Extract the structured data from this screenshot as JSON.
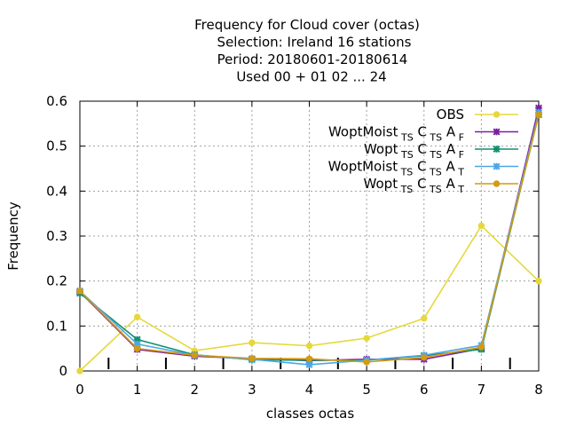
{
  "chart_data": {
    "type": "line",
    "title_lines": [
      "Frequency  for Cloud cover (octas)",
      "Selection: Ireland      16 stations",
      "Period: 20180601-20180614",
      "Used  00 + 01 02 ... 24"
    ],
    "xlabel": "classes octas",
    "ylabel": "Frequency",
    "x": [
      0,
      1,
      2,
      3,
      4,
      5,
      6,
      7,
      8
    ],
    "xlim": [
      0,
      8
    ],
    "ylim": [
      0,
      0.6
    ],
    "xticks": [
      "0",
      "1",
      "2",
      "3",
      "4",
      "5",
      "6",
      "7",
      "8"
    ],
    "yticks": [
      "0",
      "0.1",
      "0.2",
      "0.3",
      "0.4",
      "0.5",
      "0.6"
    ],
    "grid": true,
    "legend_position": "top-right",
    "series": [
      {
        "name": "OBS",
        "legend": {
          "base": "OBS"
        },
        "color": "#e6d83b",
        "marker": "circle",
        "values": [
          0.0,
          0.12,
          0.045,
          0.063,
          0.056,
          0.073,
          0.117,
          0.323,
          0.2
        ]
      },
      {
        "name": "WoptMoist_TS C_TS A_F",
        "legend": {
          "base": "WoptMoist",
          "parts": [
            [
              "TS",
              "C"
            ],
            [
              "TS",
              "A"
            ],
            [
              "F",
              ""
            ]
          ]
        },
        "color": "#7b1fa2",
        "marker": "cross",
        "values": [
          0.176,
          0.048,
          0.033,
          0.027,
          0.023,
          0.026,
          0.026,
          0.05,
          0.585
        ]
      },
      {
        "name": "Wopt_TS C_TS A_F",
        "legend": {
          "base": "Wopt",
          "parts": [
            [
              "TS",
              "C"
            ],
            [
              "TS",
              "A"
            ],
            [
              "F",
              ""
            ]
          ]
        },
        "color": "#109070",
        "marker": "cross",
        "values": [
          0.173,
          0.07,
          0.036,
          0.025,
          0.024,
          0.024,
          0.034,
          0.048,
          0.57
        ]
      },
      {
        "name": "WoptMoist_TS C_TS A_T",
        "legend": {
          "base": "WoptMoist",
          "parts": [
            [
              "TS",
              "C"
            ],
            [
              "TS",
              "A"
            ],
            [
              "T",
              ""
            ]
          ]
        },
        "color": "#4da6e8",
        "marker": "cross",
        "values": [
          0.178,
          0.06,
          0.035,
          0.026,
          0.014,
          0.024,
          0.035,
          0.057,
          0.575
        ]
      },
      {
        "name": "Wopt_TS C_TS A_T",
        "legend": {
          "base": "Wopt",
          "parts": [
            [
              "TS",
              "C"
            ],
            [
              "TS",
              "A"
            ],
            [
              "T",
              ""
            ]
          ]
        },
        "color": "#d49a10",
        "marker": "circle",
        "values": [
          0.178,
          0.05,
          0.035,
          0.028,
          0.027,
          0.02,
          0.03,
          0.053,
          0.57
        ]
      }
    ]
  }
}
